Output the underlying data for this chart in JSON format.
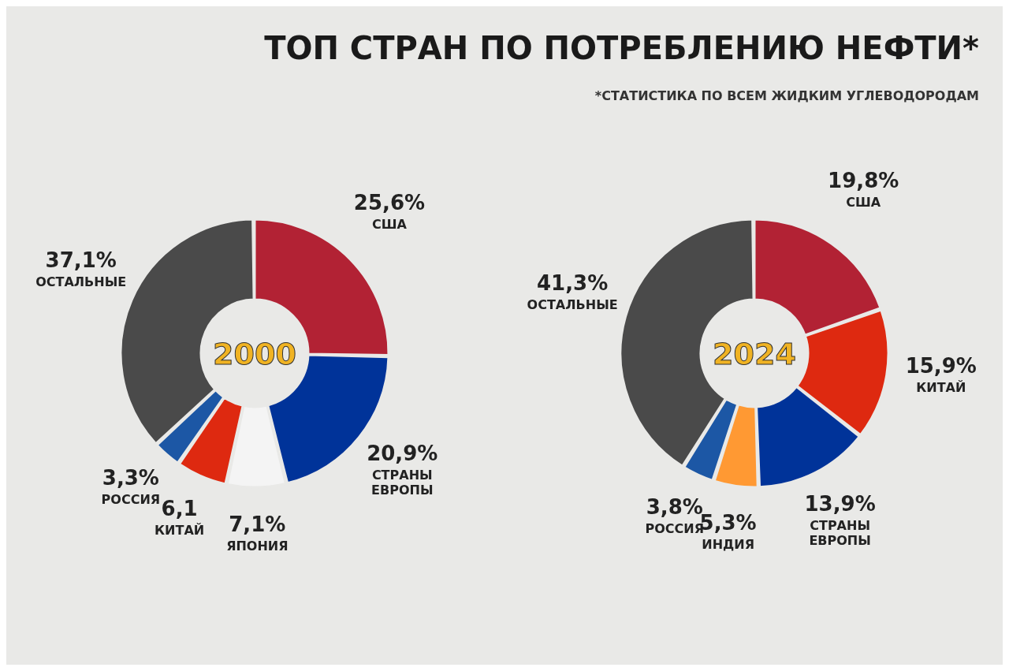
{
  "chart_data": [
    {
      "type": "donut",
      "title": "ТОП СТРАН ПО ПОТРЕБЛЕНИЮ НЕФТИ*",
      "subtitle": "2000",
      "annotations": [
        "*СТАТИСТИКА ПО ВСЕМ ЖИДКИМ УГЛЕВОДОРОДАМ"
      ],
      "categories": [
        "США",
        "СТРАНЫ ЕВРОПЫ",
        "ЯПОНИЯ",
        "КИТАЙ",
        "РОССИЯ",
        "ОСТАЛЬНЫЕ"
      ],
      "values": [
        25.6,
        20.9,
        7.1,
        6.1,
        3.3,
        37.1
      ],
      "value_labels": [
        "25,6%",
        "20,9%",
        "7,1%",
        "6,1",
        "3,3%",
        "37,1%"
      ],
      "colors": [
        "#b22234",
        "#003399",
        "#f4f4f4",
        "#de2910",
        "#1c57a5",
        "#4a4a4a"
      ]
    },
    {
      "type": "donut",
      "subtitle": "2024",
      "categories": [
        "США",
        "КИТАЙ",
        "СТРАНЫ ЕВРОПЫ",
        "ИНДИЯ",
        "РОССИЯ",
        "ОСТАЛЬНЫЕ"
      ],
      "values": [
        19.8,
        15.9,
        13.9,
        5.3,
        3.8,
        41.3
      ],
      "value_labels": [
        "19,8%",
        "15,9%",
        "13,9%",
        "5,3%",
        "3,8%",
        "41,3%"
      ],
      "colors": [
        "#b22234",
        "#de2910",
        "#003399",
        "#ff9933",
        "#1c57a5",
        "#4a4a4a"
      ]
    }
  ]
}
